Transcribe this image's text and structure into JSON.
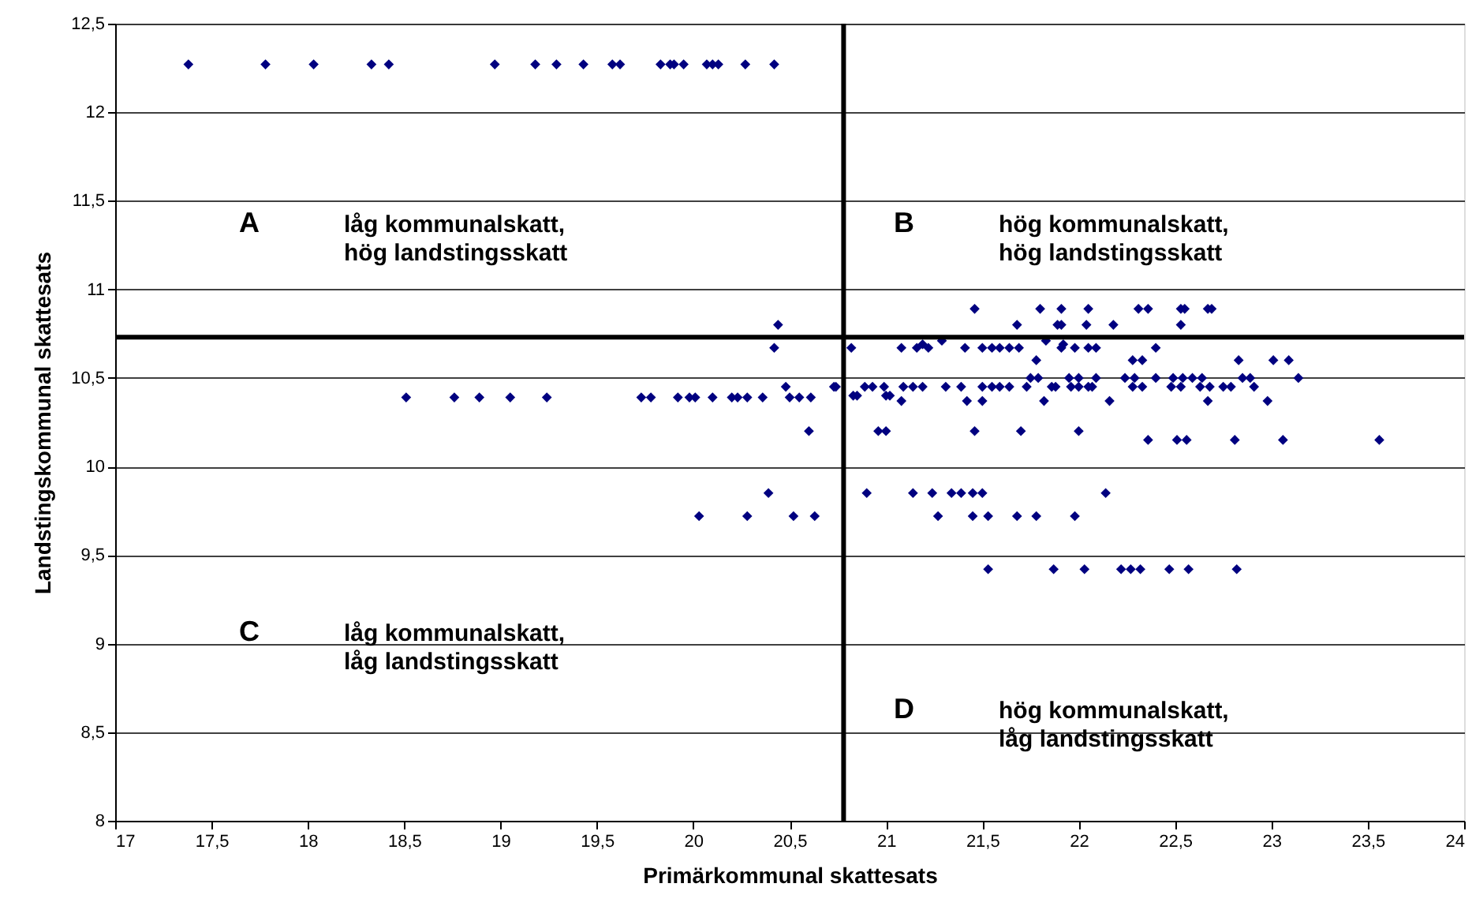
{
  "chart_data": {
    "type": "scatter",
    "xlabel": "Primärkommunal skattesats",
    "ylabel": "Landstingskommunal skattesats",
    "xlim": [
      17,
      24
    ],
    "ylim": [
      8,
      12.5
    ],
    "xticks": [
      17,
      {
        "value": 17.5,
        "label": "17,5"
      },
      18,
      {
        "value": 18.5,
        "label": "18,5"
      },
      19,
      {
        "value": 19.5,
        "label": "19,5"
      },
      20,
      {
        "value": 20.5,
        "label": "20,5"
      },
      21,
      {
        "value": 21.5,
        "label": "21,5"
      },
      22,
      {
        "value": 22.5,
        "label": "22,5"
      },
      23,
      {
        "value": 23.5,
        "label": "23,5"
      },
      24
    ],
    "yticks": [
      8,
      {
        "value": 8.5,
        "label": "8,5"
      },
      9,
      {
        "value": 9.5,
        "label": "9,5"
      },
      10,
      {
        "value": 10.5,
        "label": "10,5"
      },
      11,
      {
        "value": 11.5,
        "label": "11,5"
      },
      12,
      {
        "value": 12.5,
        "label": "12,5"
      }
    ],
    "grid": "y",
    "marker": "diamond",
    "ref_lines": [
      {
        "axis": "x",
        "value": 20.78,
        "color": "#000000"
      },
      {
        "axis": "y",
        "value": 10.73,
        "color": "#000000"
      }
    ],
    "annotations": [
      "A",
      "låg kommunalskatt,\nhög landstingsskatt",
      "B",
      "hög kommunalskatt,\nhög landstingsskatt",
      "C",
      "låg kommunalskatt,\nlåg landstingsskatt",
      "D",
      "hög kommunalskatt,\nlåg landstingsskatt"
    ],
    "series": [
      {
        "color": "#000080",
        "x": [
          17.38,
          17.78,
          18.03,
          18.33,
          18.42,
          18.97,
          19.18,
          19.29,
          19.43,
          19.58,
          19.62,
          19.83,
          19.88,
          19.9,
          19.95,
          20.07,
          20.1,
          20.13,
          20.27,
          20.42,
          21.46,
          21.8,
          21.91,
          22.05,
          22.31,
          22.36,
          22.53,
          22.55,
          22.67,
          22.69,
          20.44,
          21.68,
          21.89,
          21.91,
          22.04,
          22.18,
          22.53,
          21.29,
          21.83,
          21.19,
          21.92,
          20.42,
          20.82,
          21.08,
          21.16,
          21.22,
          21.41,
          21.5,
          21.55,
          21.59,
          21.64,
          21.69,
          21.91,
          21.98,
          22.05,
          22.09,
          22.4,
          21.78,
          22.28,
          22.33,
          22.83,
          23.01,
          23.09,
          21.75,
          21.79,
          21.95,
          22.0,
          22.09,
          22.24,
          22.29,
          22.4,
          22.49,
          22.54,
          22.59,
          22.64,
          22.85,
          22.89,
          23.14,
          20.48,
          20.73,
          20.74,
          20.89,
          20.93,
          20.99,
          21.09,
          21.14,
          21.19,
          21.31,
          21.39,
          21.5,
          21.55,
          21.59,
          21.64,
          21.73,
          21.86,
          21.88,
          21.96,
          22.0,
          22.05,
          22.07,
          22.28,
          22.33,
          22.48,
          22.53,
          22.63,
          22.68,
          22.75,
          22.79,
          22.91,
          18.51,
          18.76,
          18.89,
          19.05,
          19.24,
          19.73,
          19.78,
          19.92,
          19.98,
          20.01,
          20.1,
          20.2,
          20.23,
          20.28,
          20.36,
          20.5,
          20.55,
          20.61,
          20.83,
          20.85,
          21.0,
          21.02,
          21.08,
          21.42,
          21.5,
          21.82,
          22.16,
          22.67,
          22.98,
          20.6,
          20.96,
          21.0,
          21.46,
          21.7,
          22.0,
          22.36,
          22.51,
          22.56,
          22.81,
          23.06,
          23.56,
          20.39,
          20.9,
          21.14,
          21.24,
          21.34,
          21.39,
          21.45,
          21.5,
          22.14,
          20.03,
          20.28,
          20.52,
          20.63,
          21.27,
          21.45,
          21.53,
          21.68,
          21.78,
          21.98,
          21.53,
          21.87,
          22.03,
          22.22,
          22.27,
          22.32,
          22.47,
          22.57,
          22.82
        ],
        "values": [
          12.27,
          12.27,
          12.27,
          12.27,
          12.27,
          12.27,
          12.27,
          12.27,
          12.27,
          12.27,
          12.27,
          12.27,
          12.27,
          12.27,
          12.27,
          12.27,
          12.27,
          12.27,
          12.27,
          12.27,
          10.89,
          10.89,
          10.89,
          10.89,
          10.89,
          10.89,
          10.89,
          10.89,
          10.89,
          10.89,
          10.8,
          10.8,
          10.8,
          10.8,
          10.8,
          10.8,
          10.8,
          10.71,
          10.71,
          10.69,
          10.69,
          10.67,
          10.67,
          10.67,
          10.67,
          10.67,
          10.67,
          10.67,
          10.67,
          10.67,
          10.67,
          10.67,
          10.67,
          10.67,
          10.67,
          10.67,
          10.67,
          10.6,
          10.6,
          10.6,
          10.6,
          10.6,
          10.6,
          10.5,
          10.5,
          10.5,
          10.5,
          10.5,
          10.5,
          10.5,
          10.5,
          10.5,
          10.5,
          10.5,
          10.5,
          10.5,
          10.5,
          10.5,
          10.45,
          10.45,
          10.45,
          10.45,
          10.45,
          10.45,
          10.45,
          10.45,
          10.45,
          10.45,
          10.45,
          10.45,
          10.45,
          10.45,
          10.45,
          10.45,
          10.45,
          10.45,
          10.45,
          10.45,
          10.45,
          10.45,
          10.45,
          10.45,
          10.45,
          10.45,
          10.45,
          10.45,
          10.45,
          10.45,
          10.45,
          10.39,
          10.39,
          10.39,
          10.39,
          10.39,
          10.39,
          10.39,
          10.39,
          10.39,
          10.39,
          10.39,
          10.39,
          10.39,
          10.39,
          10.39,
          10.39,
          10.39,
          10.39,
          10.4,
          10.4,
          10.4,
          10.4,
          10.37,
          10.37,
          10.37,
          10.37,
          10.37,
          10.37,
          10.37,
          10.2,
          10.2,
          10.2,
          10.2,
          10.2,
          10.2,
          10.15,
          10.15,
          10.15,
          10.15,
          10.15,
          10.15,
          9.85,
          9.85,
          9.85,
          9.85,
          9.85,
          9.85,
          9.85,
          9.85,
          9.85,
          9.72,
          9.72,
          9.72,
          9.72,
          9.72,
          9.72,
          9.72,
          9.72,
          9.72,
          9.72,
          9.42,
          9.42,
          9.42,
          9.42,
          9.42,
          9.42,
          9.42,
          9.42,
          9.42
        ]
      }
    ]
  }
}
